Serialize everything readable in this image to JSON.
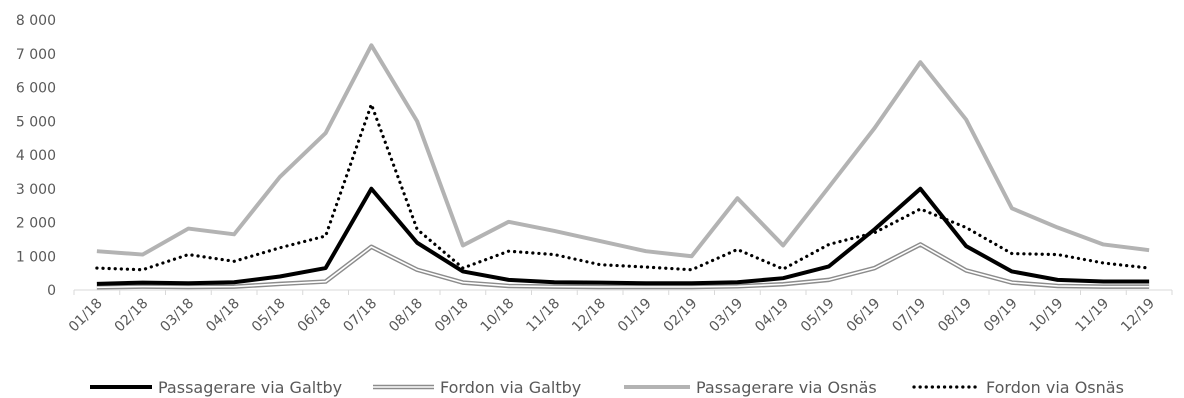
{
  "chart_data": {
    "type": "line",
    "title": "",
    "xlabel": "",
    "ylabel": "",
    "ylim": [
      0,
      8000
    ],
    "yticks": [
      "0",
      "1 000",
      "2 000",
      "3 000",
      "4 000",
      "5 000",
      "6 000",
      "7 000",
      "8 000"
    ],
    "ytick_values": [
      0,
      1000,
      2000,
      3000,
      4000,
      5000,
      6000,
      7000,
      8000
    ],
    "grid": false,
    "legend_position": "bottom",
    "categories": [
      "01/18",
      "02/18",
      "03/18",
      "04/18",
      "05/18",
      "06/18",
      "07/18",
      "08/18",
      "09/18",
      "10/18",
      "11/18",
      "12/18",
      "01/19",
      "02/19",
      "03/19",
      "04/19",
      "05/19",
      "06/19",
      "07/19",
      "08/19",
      "09/19",
      "10/19",
      "11/19",
      "12/19"
    ],
    "series": [
      {
        "name": "Passagerare via Galtby",
        "style": "solid-black",
        "values": [
          180,
          220,
          200,
          230,
          400,
          650,
          3000,
          1400,
          550,
          300,
          230,
          220,
          200,
          200,
          230,
          350,
          700,
          1800,
          3000,
          1300,
          550,
          300,
          250,
          250
        ]
      },
      {
        "name": "Fordon via Galtby",
        "style": "double-gray",
        "values": [
          80,
          100,
          90,
          100,
          180,
          250,
          1280,
          600,
          220,
          120,
          100,
          90,
          90,
          90,
          110,
          170,
          300,
          650,
          1350,
          580,
          220,
          120,
          100,
          100
        ]
      },
      {
        "name": "Passagerare via Osnäs",
        "style": "solid-lightgray",
        "values": [
          1150,
          1050,
          1820,
          1650,
          3350,
          4650,
          7250,
          5000,
          1320,
          2020,
          1750,
          1450,
          1150,
          1000,
          2720,
          1320,
          3050,
          4800,
          6750,
          5050,
          2420,
          1850,
          1350,
          1180
        ]
      },
      {
        "name": "Fordon via Osnäs",
        "style": "dotted-black",
        "values": [
          650,
          600,
          1050,
          850,
          1250,
          1600,
          5500,
          1800,
          650,
          1150,
          1050,
          750,
          680,
          600,
          1200,
          620,
          1350,
          1700,
          2400,
          1850,
          1080,
          1050,
          800,
          650
        ]
      }
    ]
  }
}
